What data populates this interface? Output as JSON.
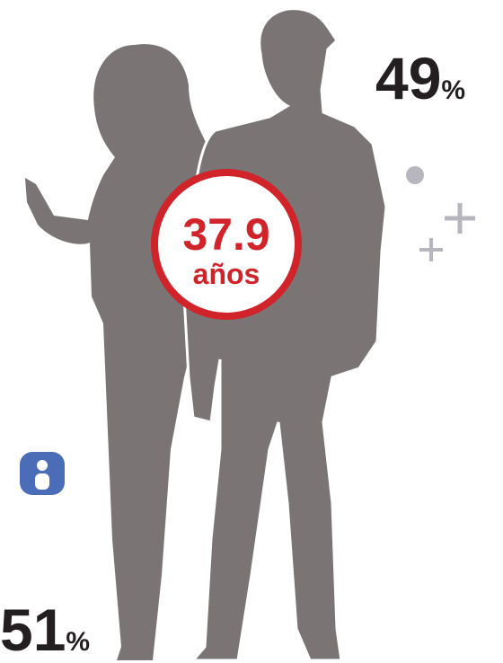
{
  "men": {
    "value": 49,
    "unit": "%"
  },
  "women": {
    "value": 51,
    "unit": "%"
  },
  "age": {
    "value": 37.9,
    "unit": "años"
  }
}
